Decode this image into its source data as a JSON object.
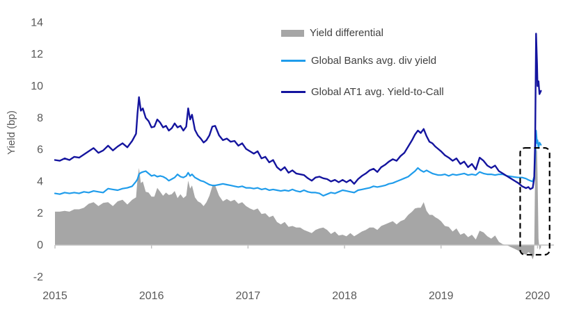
{
  "page": {
    "background": "#FFFFFF"
  },
  "legend": {
    "items": [
      {
        "label": "Yield differential",
        "marker": "filled-rect"
      },
      {
        "label": "Global Banks avg. div yield",
        "marker": "line"
      },
      {
        "label": "Global AT1 avg. Yield-to-Call",
        "marker": "line"
      }
    ]
  },
  "chart_data": {
    "type": "line",
    "title": "",
    "xlabel": "",
    "ylabel": "Yield (bp)",
    "xlim": [
      2015,
      2020.17
    ],
    "ylim": [
      -2,
      14
    ],
    "grid": false,
    "legend_position": "top-center",
    "x_ticks": [
      2015,
      2016,
      2017,
      2018,
      2019,
      2020
    ],
    "x_tick_labels": [
      "2015",
      "2016",
      "2017",
      "2018",
      "2019",
      "2020"
    ],
    "y_ticks": [
      -2,
      0,
      2,
      4,
      6,
      8,
      10,
      12,
      14
    ],
    "y_tick_labels": [
      "-2",
      "0",
      "2",
      "4",
      "6",
      "8",
      "10",
      "12",
      "14"
    ],
    "axis_color": "#BFBFBF",
    "tick_label_color": "#595959",
    "annotation": {
      "type": "dashed-box",
      "color": "#000000",
      "x_from": 2019.82,
      "x_to": 2020.125,
      "y_from": -0.61,
      "y_to": 6.11
    },
    "x": [
      2015.0,
      2015.05,
      2015.1,
      2015.15,
      2015.2,
      2015.25,
      2015.3,
      2015.35,
      2015.4,
      2015.45,
      2015.5,
      2015.55,
      2015.6,
      2015.65,
      2015.7,
      2015.75,
      2015.8,
      2015.84,
      2015.855,
      2015.87,
      2015.89,
      2015.91,
      2015.94,
      2015.97,
      2016.0,
      2016.03,
      2016.06,
      2016.09,
      2016.12,
      2016.15,
      2016.18,
      2016.21,
      2016.24,
      2016.27,
      2016.3,
      2016.33,
      2016.36,
      2016.38,
      2016.4,
      2016.42,
      2016.45,
      2016.48,
      2016.51,
      2016.54,
      2016.57,
      2016.6,
      2016.63,
      2016.66,
      2016.7,
      2016.74,
      2016.78,
      2016.82,
      2016.86,
      2016.9,
      2016.94,
      2016.98,
      2017.02,
      2017.06,
      2017.1,
      2017.14,
      2017.18,
      2017.22,
      2017.26,
      2017.3,
      2017.34,
      2017.38,
      2017.42,
      2017.46,
      2017.5,
      2017.54,
      2017.58,
      2017.62,
      2017.66,
      2017.7,
      2017.74,
      2017.78,
      2017.82,
      2017.86,
      2017.9,
      2017.94,
      2017.98,
      2018.02,
      2018.06,
      2018.1,
      2018.14,
      2018.18,
      2018.22,
      2018.26,
      2018.3,
      2018.34,
      2018.38,
      2018.42,
      2018.46,
      2018.5,
      2018.54,
      2018.58,
      2018.62,
      2018.66,
      2018.7,
      2018.73,
      2018.76,
      2018.79,
      2018.82,
      2018.85,
      2018.88,
      2018.91,
      2018.94,
      2018.97,
      2019.0,
      2019.04,
      2019.08,
      2019.12,
      2019.16,
      2019.2,
      2019.24,
      2019.28,
      2019.32,
      2019.36,
      2019.4,
      2019.44,
      2019.48,
      2019.52,
      2019.56,
      2019.6,
      2019.64,
      2019.68,
      2019.72,
      2019.76,
      2019.8,
      2019.84,
      2019.88,
      2019.905,
      2019.925,
      2019.95,
      2019.965,
      2019.975,
      2019.985,
      2019.995,
      2020.0,
      2020.01,
      2020.02,
      2020.035
    ],
    "series": [
      {
        "name": "Yield differential",
        "type": "area",
        "color": "#A6A6A6",
        "values": [
          2.1,
          2.1,
          2.15,
          2.1,
          2.25,
          2.25,
          2.35,
          2.6,
          2.7,
          2.45,
          2.65,
          2.7,
          2.45,
          2.75,
          2.85,
          2.55,
          2.85,
          3.0,
          4.15,
          4.85,
          3.9,
          4.0,
          3.35,
          3.3,
          3.05,
          3.05,
          3.6,
          3.35,
          3.1,
          3.3,
          3.15,
          3.2,
          3.4,
          2.95,
          3.2,
          2.95,
          3.1,
          4.05,
          3.55,
          3.75,
          3.0,
          2.75,
          2.65,
          2.45,
          2.7,
          3.1,
          3.7,
          3.75,
          3.1,
          2.75,
          2.9,
          2.75,
          2.85,
          2.6,
          2.7,
          2.45,
          2.3,
          2.2,
          2.3,
          1.95,
          2.0,
          1.75,
          1.85,
          1.45,
          1.3,
          1.45,
          1.15,
          1.2,
          1.1,
          1.1,
          0.95,
          0.85,
          0.75,
          0.95,
          1.05,
          1.1,
          0.95,
          0.7,
          0.85,
          0.6,
          0.65,
          0.55,
          0.75,
          0.55,
          0.7,
          0.85,
          0.95,
          1.1,
          1.1,
          0.95,
          1.2,
          1.3,
          1.4,
          1.5,
          1.3,
          1.5,
          1.6,
          1.9,
          2.1,
          2.3,
          2.35,
          2.35,
          2.7,
          2.15,
          1.9,
          1.9,
          1.75,
          1.65,
          1.5,
          1.2,
          1.15,
          0.85,
          1.05,
          0.65,
          0.75,
          0.5,
          0.65,
          0.35,
          0.9,
          0.8,
          0.55,
          0.4,
          0.6,
          0.2,
          0.05,
          0.0,
          -0.12,
          -0.23,
          -0.35,
          -0.55,
          -0.6,
          -0.45,
          -0.53,
          -0.9,
          -0.6,
          5.0,
          6.1,
          5.9,
          4.5,
          0.4,
          -0.3,
          -0.15
        ]
      },
      {
        "name": "Global Banks avg. div yield",
        "type": "line",
        "color": "#1F9CEB",
        "values": [
          3.25,
          3.2,
          3.3,
          3.25,
          3.3,
          3.25,
          3.35,
          3.3,
          3.4,
          3.35,
          3.3,
          3.55,
          3.5,
          3.45,
          3.55,
          3.6,
          3.7,
          4.0,
          4.15,
          4.45,
          4.55,
          4.6,
          4.65,
          4.5,
          4.35,
          4.4,
          4.3,
          4.35,
          4.3,
          4.2,
          4.05,
          4.15,
          4.25,
          4.45,
          4.3,
          4.25,
          4.35,
          4.55,
          4.35,
          4.45,
          4.25,
          4.15,
          4.05,
          4.0,
          3.9,
          3.8,
          3.75,
          3.75,
          3.8,
          3.85,
          3.8,
          3.75,
          3.7,
          3.65,
          3.7,
          3.6,
          3.6,
          3.55,
          3.6,
          3.5,
          3.55,
          3.45,
          3.5,
          3.45,
          3.4,
          3.45,
          3.4,
          3.5,
          3.4,
          3.35,
          3.45,
          3.35,
          3.3,
          3.3,
          3.25,
          3.1,
          3.2,
          3.3,
          3.25,
          3.35,
          3.45,
          3.4,
          3.35,
          3.3,
          3.45,
          3.5,
          3.55,
          3.6,
          3.7,
          3.65,
          3.7,
          3.75,
          3.85,
          3.9,
          4.0,
          4.1,
          4.2,
          4.3,
          4.5,
          4.65,
          4.85,
          4.7,
          4.6,
          4.7,
          4.6,
          4.5,
          4.45,
          4.4,
          4.4,
          4.45,
          4.35,
          4.45,
          4.4,
          4.45,
          4.5,
          4.4,
          4.45,
          4.4,
          4.6,
          4.5,
          4.45,
          4.45,
          4.4,
          4.45,
          4.45,
          4.35,
          4.32,
          4.28,
          4.25,
          4.25,
          4.18,
          4.1,
          4.05,
          4.0,
          4.3,
          5.5,
          7.2,
          6.4,
          6.6,
          6.1,
          6.45,
          6.3
        ]
      },
      {
        "name": "Global AT1 avg. Yield-to-Call",
        "type": "line",
        "color": "#14149E",
        "values": [
          5.35,
          5.3,
          5.45,
          5.35,
          5.55,
          5.5,
          5.7,
          5.9,
          6.1,
          5.8,
          5.95,
          6.25,
          5.95,
          6.2,
          6.4,
          6.15,
          6.55,
          7.0,
          8.3,
          9.3,
          8.45,
          8.6,
          8.0,
          7.8,
          7.4,
          7.45,
          7.9,
          7.7,
          7.4,
          7.5,
          7.2,
          7.35,
          7.65,
          7.4,
          7.5,
          7.2,
          7.45,
          8.6,
          7.9,
          8.2,
          7.25,
          6.9,
          6.7,
          6.45,
          6.6,
          6.9,
          7.45,
          7.5,
          6.9,
          6.6,
          6.7,
          6.5,
          6.55,
          6.25,
          6.4,
          6.05,
          5.9,
          5.75,
          5.9,
          5.45,
          5.55,
          5.2,
          5.35,
          4.9,
          4.7,
          4.9,
          4.55,
          4.7,
          4.5,
          4.45,
          4.4,
          4.2,
          4.05,
          4.25,
          4.3,
          4.2,
          4.15,
          4.0,
          4.1,
          3.95,
          4.1,
          3.95,
          4.1,
          3.85,
          4.15,
          4.35,
          4.5,
          4.7,
          4.8,
          4.6,
          4.9,
          5.05,
          5.25,
          5.4,
          5.3,
          5.6,
          5.8,
          6.2,
          6.6,
          6.95,
          7.2,
          7.05,
          7.3,
          6.85,
          6.5,
          6.4,
          6.2,
          6.05,
          5.9,
          5.65,
          5.5,
          5.3,
          5.45,
          5.1,
          5.25,
          4.9,
          5.1,
          4.75,
          5.5,
          5.3,
          5.0,
          4.85,
          5.0,
          4.65,
          4.5,
          4.35,
          4.2,
          4.05,
          3.9,
          3.7,
          3.58,
          3.65,
          3.52,
          3.6,
          4.2,
          6.5,
          13.3,
          11.4,
          10.0,
          10.3,
          9.5,
          9.7
        ]
      }
    ]
  }
}
